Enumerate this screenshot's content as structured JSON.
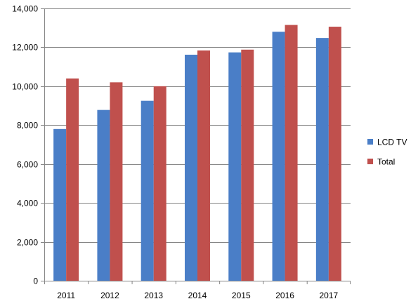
{
  "chart_data": {
    "type": "bar",
    "categories": [
      "2011",
      "2012",
      "2013",
      "2014",
      "2015",
      "2016",
      "2017"
    ],
    "series": [
      {
        "name": "LCD TV",
        "color": "#4a7ec7",
        "values": [
          7800,
          8780,
          9250,
          11620,
          11740,
          12800,
          12480
        ]
      },
      {
        "name": "Total",
        "color": "#c0504d",
        "values": [
          10400,
          10200,
          10000,
          11840,
          11880,
          13150,
          13060
        ]
      }
    ],
    "ylim": [
      0,
      14000
    ],
    "y_ticks": [
      0,
      2000,
      4000,
      6000,
      8000,
      10000,
      12000,
      14000
    ],
    "y_tick_labels": [
      "0",
      "2,000",
      "4,000",
      "6,000",
      "8,000",
      "10,000",
      "12,000",
      "14,000"
    ],
    "grid": true,
    "grid_color": "#868686",
    "legend_position": "right"
  }
}
